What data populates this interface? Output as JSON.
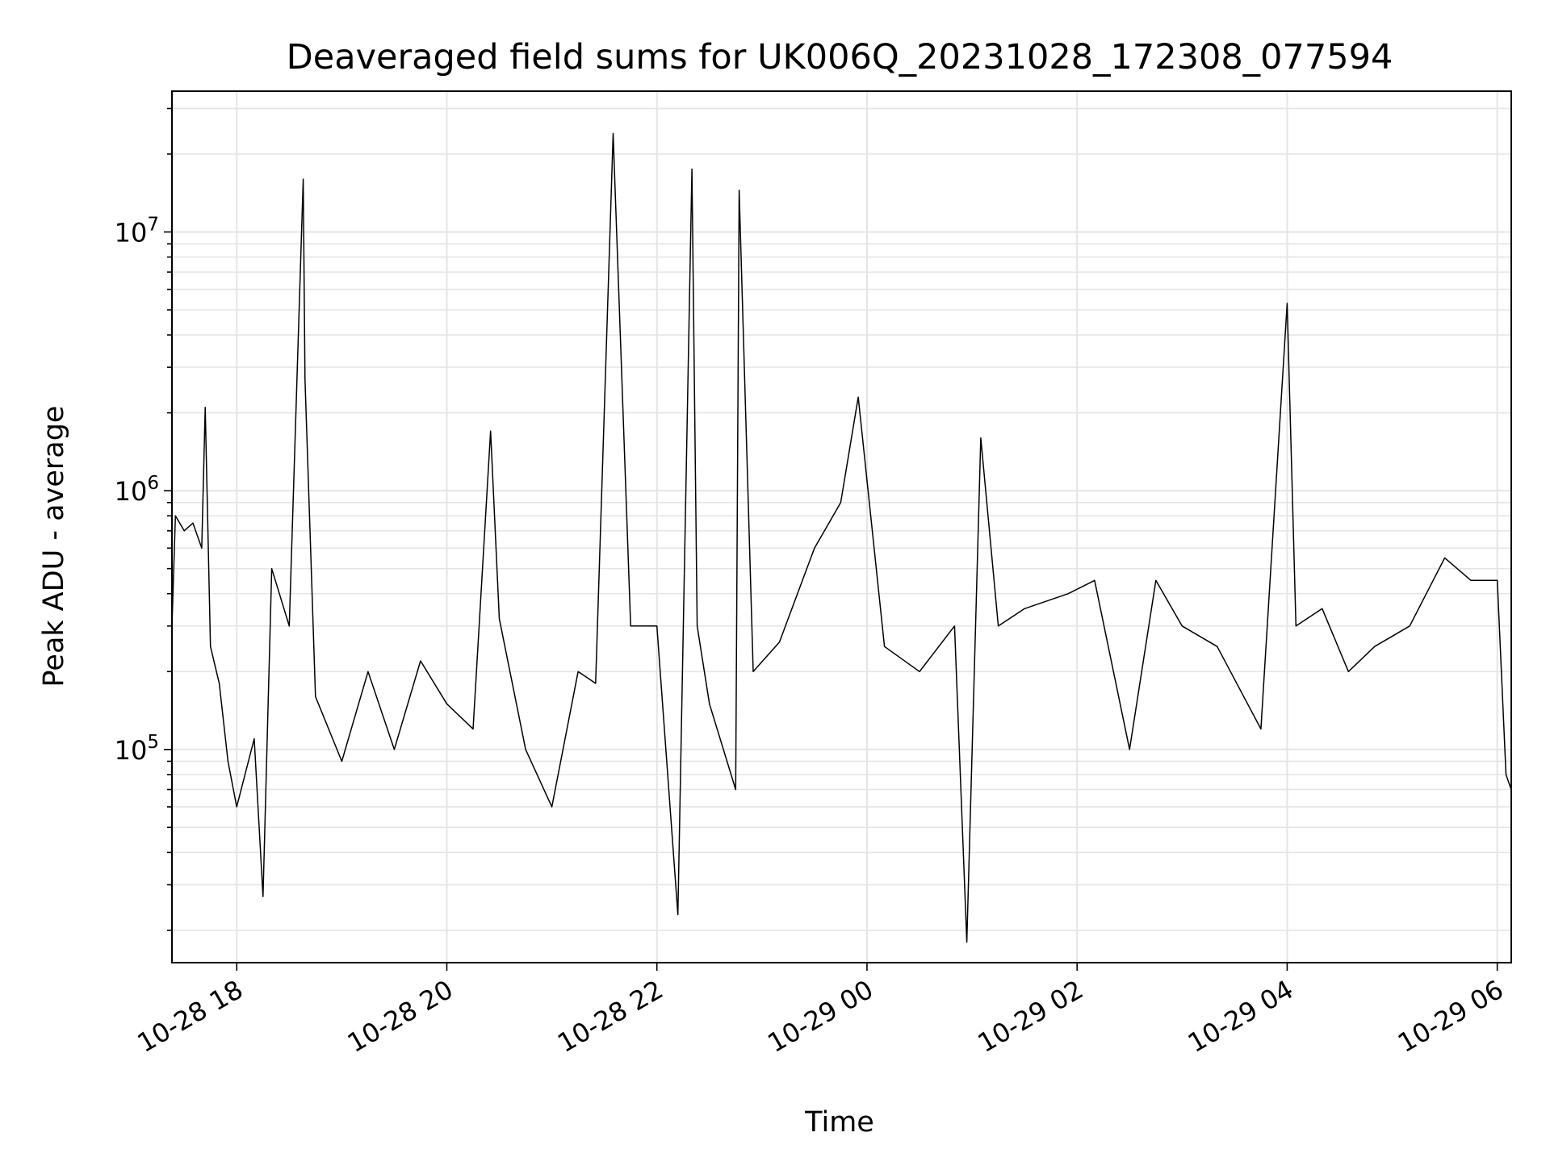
{
  "chart_data": {
    "type": "line",
    "title": "Deaveraged field sums for UK006Q_20231028_172308_077594",
    "xlabel": "Time",
    "ylabel": "Peak ADU - average",
    "yscale": "log",
    "ylim": [
      15000,
      35000000
    ],
    "xlim": [
      "10-28 17:23",
      "10-29 06:08"
    ],
    "grid": true,
    "line_color": "#000000",
    "grid_color": "#e5e5e5",
    "x_ticks": [
      {
        "t": "10-28 18:00",
        "label": "10-28 18"
      },
      {
        "t": "10-28 20:00",
        "label": "10-28 20"
      },
      {
        "t": "10-28 22:00",
        "label": "10-28 22"
      },
      {
        "t": "10-29 00:00",
        "label": "10-29 00"
      },
      {
        "t": "10-29 02:00",
        "label": "10-29 02"
      },
      {
        "t": "10-29 04:00",
        "label": "10-29 04"
      },
      {
        "t": "10-29 06:00",
        "label": "10-29 06"
      }
    ],
    "y_ticks": [
      {
        "value": 100000,
        "base": "10",
        "exp": "5"
      },
      {
        "value": 1000000,
        "base": "10",
        "exp": "6"
      },
      {
        "value": 10000000,
        "base": "10",
        "exp": "7"
      }
    ],
    "series": [
      {
        "x": [
          "10-28 17:23",
          "10-28 17:25",
          "10-28 17:30",
          "10-28 17:35",
          "10-28 17:40",
          "10-28 17:42",
          "10-28 17:45",
          "10-28 17:50",
          "10-28 17:55",
          "10-28 18:00",
          "10-28 18:10",
          "10-28 18:15",
          "10-28 18:20",
          "10-28 18:30",
          "10-28 18:38",
          "10-28 18:39",
          "10-28 18:45",
          "10-28 19:00",
          "10-28 19:15",
          "10-28 19:30",
          "10-28 19:45",
          "10-28 20:00",
          "10-28 20:15",
          "10-28 20:25",
          "10-28 20:30",
          "10-28 20:45",
          "10-28 21:00",
          "10-28 21:15",
          "10-28 21:25",
          "10-28 21:35",
          "10-28 21:45",
          "10-28 22:00",
          "10-28 22:12",
          "10-28 22:20",
          "10-28 22:23",
          "10-28 22:30",
          "10-28 22:45",
          "10-28 22:47",
          "10-28 22:55",
          "10-28 23:10",
          "10-28 23:30",
          "10-28 23:45",
          "10-28 23:55",
          "10-29 00:10",
          "10-29 00:30",
          "10-29 00:50",
          "10-29 00:57",
          "10-29 01:05",
          "10-29 01:15",
          "10-29 01:30",
          "10-29 01:55",
          "10-29 02:10",
          "10-29 02:30",
          "10-29 02:45",
          "10-29 03:00",
          "10-29 03:20",
          "10-29 03:45",
          "10-29 04:00",
          "10-29 04:05",
          "10-29 04:20",
          "10-29 04:35",
          "10-29 04:50",
          "10-29 05:10",
          "10-29 05:30",
          "10-29 05:45",
          "10-29 06:00",
          "10-29 06:05",
          "10-29 06:08"
        ],
        "y": [
          300000,
          800000,
          700000,
          750000,
          600000,
          2100000,
          250000,
          180000,
          90000,
          60000,
          110000,
          27000,
          500000,
          300000,
          16000000,
          2700000,
          160000,
          90000,
          200000,
          100000,
          220000,
          150000,
          120000,
          1700000,
          320000,
          100000,
          60000,
          200000,
          180000,
          24000000,
          300000,
          300000,
          23000,
          17500000,
          300000,
          150000,
          70000,
          14500000,
          200000,
          260000,
          600000,
          900000,
          2300000,
          250000,
          200000,
          300000,
          18000,
          1600000,
          300000,
          350000,
          400000,
          450000,
          100000,
          450000,
          300000,
          250000,
          120000,
          5300000,
          300000,
          350000,
          200000,
          250000,
          300000,
          550000,
          450000,
          450000,
          80000,
          70000
        ]
      }
    ]
  }
}
